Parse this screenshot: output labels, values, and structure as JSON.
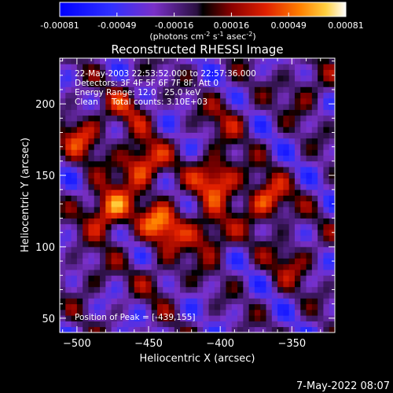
{
  "chart_data": {
    "type": "heatmap",
    "title": "Reconstructed RHESSI Image",
    "xlabel": "Heliocentric X (arcsec)",
    "ylabel": "Heliocentric Y (arcsec)",
    "xlim": [
      -512,
      -320
    ],
    "ylim": [
      40,
      232
    ],
    "x_ticks": [
      -500,
      -450,
      -400,
      -350
    ],
    "y_ticks": [
      50,
      100,
      150,
      200
    ],
    "colorbar": {
      "range": [
        -0.00081,
        0.00081
      ],
      "ticks": [
        "-0.00081",
        "-0.00049",
        "-0.00016",
        "0.00016",
        "0.00049",
        "0.00081"
      ],
      "unit_prefix": "(photons cm",
      "unit_exp1": "-2",
      "unit_mid": " s",
      "unit_exp2": "-1",
      "unit_mid2": " asec",
      "unit_exp3": "-2",
      "unit_suffix": ")"
    },
    "annotations": {
      "time_range": "22-May-2003 22:53:52.000 to 22:57:36.000",
      "detectors": "Detectors: 3F 4F 5F 6F 7F 8F, Att 0",
      "energy": "Energy Range: 12.0 - 25.0 keV",
      "method": "Clean",
      "counts": "Total counts: 3.10E+03",
      "peak": "Position of Peak = [-439,155]"
    },
    "grid": false,
    "sources": [
      {
        "x": -478,
        "y": 126,
        "value": 0.00078
      },
      {
        "x": -455,
        "y": 158,
        "value": 0.00075
      },
      {
        "x": -440,
        "y": 116,
        "value": 0.0007
      },
      {
        "x": -402,
        "y": 148,
        "value": 0.00074
      },
      {
        "x": -368,
        "y": 132,
        "value": 0.00065
      },
      {
        "x": -496,
        "y": 178,
        "value": 0.0005
      },
      {
        "x": -408,
        "y": 108,
        "value": 0.00055
      },
      {
        "x": -465,
        "y": 198,
        "value": 0.00035
      },
      {
        "x": -396,
        "y": 190,
        "value": 0.0003
      },
      {
        "x": -340,
        "y": 210,
        "value": 0.0003
      },
      {
        "x": -350,
        "y": 90,
        "value": 0.00035
      },
      {
        "x": -440,
        "y": 78,
        "value": 0.00025
      },
      {
        "x": -490,
        "y": 80,
        "value": 0.0002
      }
    ]
  },
  "footer": {
    "timestamp": "7-May-2022 08:07"
  }
}
